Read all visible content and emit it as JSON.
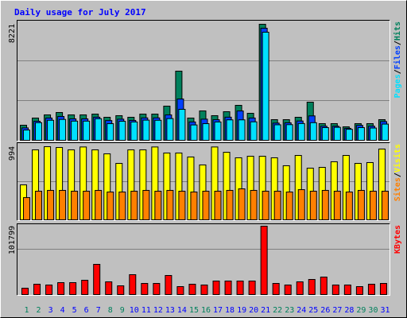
{
  "chart_data": [
    {
      "type": "bar",
      "title": "Daily usage for July 2017",
      "ylim": [
        0,
        8221
      ],
      "yticks": [
        8221
      ],
      "legend_separator": "/",
      "series": [
        {
          "name": "Hits",
          "color": "#00805c",
          "values": [
            1070,
            1577,
            1802,
            1971,
            1802,
            1802,
            1858,
            1633,
            1746,
            1633,
            1858,
            1858,
            2421,
            4899,
            1577,
            2083,
            1746,
            2027,
            2478,
            1914,
            8221,
            1464,
            1464,
            1633,
            2703,
            1182,
            1182,
            957,
            1182,
            1182,
            1464
          ]
        },
        {
          "name": "Files",
          "color": "#0040ff",
          "values": [
            880,
            1350,
            1580,
            1690,
            1520,
            1520,
            1640,
            1400,
            1500,
            1410,
            1590,
            1590,
            1800,
            2928,
            1300,
            1500,
            1460,
            1640,
            2080,
            1580,
            7940,
            1220,
            1240,
            1370,
            1730,
            1000,
            1000,
            850,
            1060,
            1000,
            1330
          ]
        },
        {
          "name": "Pages",
          "color": "#00e0ff",
          "values": [
            730,
            1250,
            1420,
            1480,
            1360,
            1360,
            1530,
            1180,
            1350,
            1300,
            1430,
            1420,
            1540,
            2196,
            1090,
            1180,
            1300,
            1450,
            1450,
            1310,
            7658,
            1100,
            1110,
            1190,
            1250,
            900,
            920,
            780,
            900,
            870,
            1150
          ]
        }
      ]
    },
    {
      "type": "bar",
      "ylim": [
        0,
        994
      ],
      "yticks": [
        994
      ],
      "legend_separator": "/",
      "series": [
        {
          "name": "Visits",
          "color": "#ffff00",
          "values": [
            475,
            951,
            994,
            983,
            951,
            990,
            951,
            897,
            767,
            951,
            951,
            990,
            908,
            908,
            854,
            746,
            990,
            918,
            843,
            864,
            864,
            843,
            735,
            875,
            702,
            713,
            789,
            875,
            767,
            778,
            962
          ]
        },
        {
          "name": "Sites",
          "color": "#ff8000",
          "values": [
            302,
            389,
            400,
            400,
            389,
            389,
            400,
            378,
            378,
            389,
            400,
            389,
            400,
            389,
            378,
            389,
            389,
            400,
            421,
            400,
            389,
            389,
            378,
            410,
            389,
            400,
            389,
            378,
            400,
            389,
            389
          ]
        }
      ]
    },
    {
      "type": "bar",
      "ylim": [
        0,
        101799
      ],
      "yticks": [
        101799
      ],
      "categories": [
        "1",
        "2",
        "3",
        "4",
        "5",
        "6",
        "7",
        "8",
        "9",
        "10",
        "11",
        "12",
        "13",
        "14",
        "15",
        "16",
        "17",
        "18",
        "19",
        "20",
        "21",
        "22",
        "23",
        "24",
        "25",
        "26",
        "27",
        "28",
        "29",
        "30",
        "31"
      ],
      "category_colors": [
        "#00805c",
        "#00805c",
        "#0000ff",
        "#0000ff",
        "#0000ff",
        "#0000ff",
        "#0000ff",
        "#00805c",
        "#00805c",
        "#0000ff",
        "#0000ff",
        "#0000ff",
        "#0000ff",
        "#0000ff",
        "#00805c",
        "#00805c",
        "#0000ff",
        "#0000ff",
        "#0000ff",
        "#0000ff",
        "#0000ff",
        "#00805c",
        "#00805c",
        "#0000ff",
        "#0000ff",
        "#0000ff",
        "#0000ff",
        "#0000ff",
        "#00805c",
        "#00805c",
        "#0000ff"
      ],
      "series": [
        {
          "name": "KBytes",
          "color": "#ff0000",
          "values": [
            9470,
            15388,
            14205,
            17756,
            17756,
            21307,
            44981,
            18939,
            13021,
            29593,
            16572,
            16572,
            28409,
            11837,
            15388,
            14205,
            20123,
            20123,
            20123,
            20123,
            101799,
            16572,
            14205,
            18939,
            22490,
            26042,
            14205,
            14205,
            11837,
            15388,
            16572
          ]
        }
      ]
    }
  ]
}
